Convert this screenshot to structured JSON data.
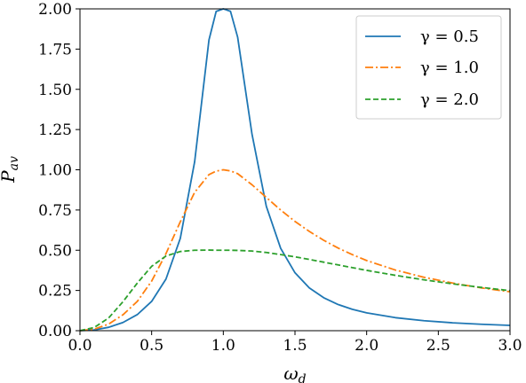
{
  "chart_data": {
    "type": "line",
    "title": "",
    "xlabel": "ω_d",
    "ylabel": "P_av",
    "xlim": [
      0.0,
      3.0
    ],
    "ylim": [
      0.0,
      2.0
    ],
    "xticks": [
      "0.0",
      "0.5",
      "1.0",
      "1.5",
      "2.0",
      "2.5",
      "3.0"
    ],
    "yticks": [
      "0.00",
      "0.25",
      "0.50",
      "0.75",
      "1.00",
      "1.25",
      "1.50",
      "1.75",
      "2.00"
    ],
    "legend_position": "top-right",
    "grid": false,
    "x": [
      0.0,
      0.1,
      0.2,
      0.3,
      0.4,
      0.5,
      0.6,
      0.7,
      0.8,
      0.9,
      0.95,
      1.0,
      1.05,
      1.1,
      1.2,
      1.3,
      1.4,
      1.5,
      1.6,
      1.7,
      1.8,
      1.9,
      2.0,
      2.2,
      2.4,
      2.6,
      2.8,
      3.0
    ],
    "series": [
      {
        "name": "γ = 0.5",
        "color": "#1f77b4",
        "dash": "solid",
        "values": [
          0.0,
          0.005,
          0.021,
          0.051,
          0.1,
          0.182,
          0.321,
          0.574,
          1.05,
          1.807,
          1.984,
          2.0,
          1.985,
          1.824,
          1.222,
          0.773,
          0.512,
          0.36,
          0.266,
          0.205,
          0.163,
          0.133,
          0.111,
          0.081,
          0.062,
          0.049,
          0.04,
          0.033
        ]
      },
      {
        "name": "γ = 1.0",
        "color": "#ff7f0e",
        "dash": "dashdot",
        "values": [
          0.0,
          0.01,
          0.041,
          0.099,
          0.182,
          0.308,
          0.479,
          0.677,
          0.86,
          0.97,
          0.992,
          1.0,
          0.993,
          0.976,
          0.907,
          0.828,
          0.75,
          0.679,
          0.617,
          0.562,
          0.514,
          0.473,
          0.436,
          0.377,
          0.332,
          0.296,
          0.266,
          0.242
        ]
      },
      {
        "name": "γ = 2.0",
        "color": "#2ca02c",
        "dash": "dashed",
        "values": [
          0.0,
          0.02,
          0.079,
          0.18,
          0.296,
          0.4,
          0.464,
          0.492,
          0.5,
          0.501,
          0.5,
          0.5,
          0.5,
          0.499,
          0.495,
          0.486,
          0.473,
          0.459,
          0.443,
          0.426,
          0.409,
          0.392,
          0.375,
          0.344,
          0.316,
          0.291,
          0.269,
          0.249
        ]
      }
    ]
  }
}
